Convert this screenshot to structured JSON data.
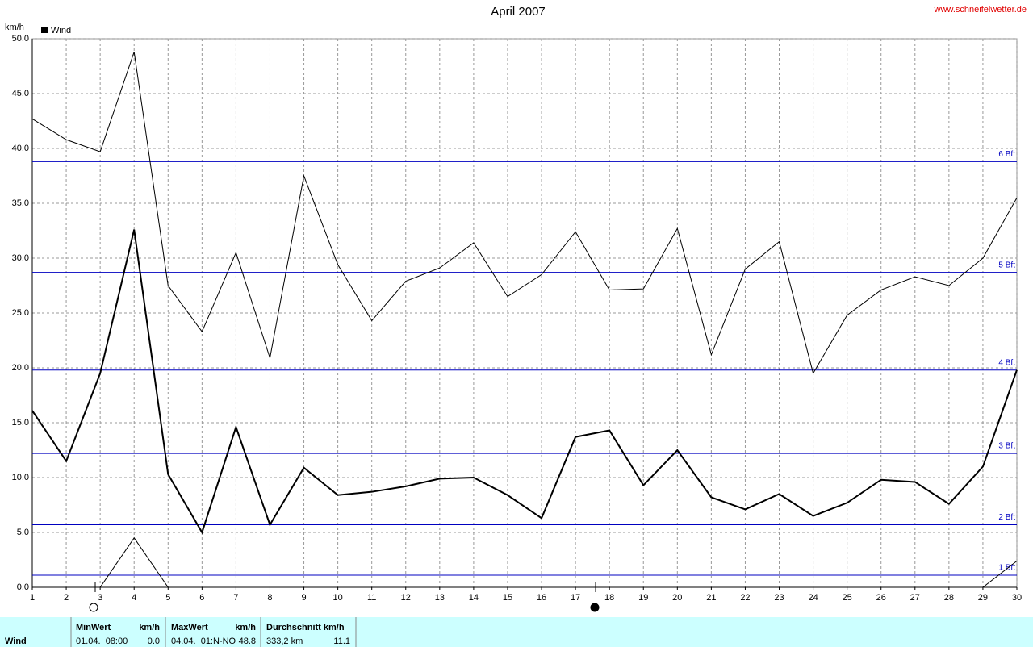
{
  "chart_data": {
    "type": "line",
    "title": "April 2007",
    "source": "www.schneifelwetter.de",
    "y_unit": "km/h",
    "legend": "Wind",
    "x": [
      1,
      2,
      3,
      4,
      5,
      6,
      7,
      8,
      9,
      10,
      11,
      12,
      13,
      14,
      15,
      16,
      17,
      18,
      19,
      20,
      21,
      22,
      23,
      24,
      25,
      26,
      27,
      28,
      29,
      30
    ],
    "series": [
      {
        "color": "#000000",
        "line_width": 1,
        "values": [
          42.7,
          40.8,
          39.7,
          48.8,
          27.5,
          23.3,
          30.5,
          20.9,
          37.5,
          29.4,
          24.3,
          27.9,
          29.1,
          31.4,
          26.5,
          28.5,
          32.4,
          27.1,
          27.2,
          32.7,
          21.2,
          29.0,
          31.5,
          19.5,
          24.8,
          27.1,
          28.3,
          27.5,
          30.0,
          35.5
        ]
      },
      {
        "color": "#000000",
        "line_width": 2,
        "values": [
          16.1,
          11.5,
          19.5,
          32.6,
          10.3,
          5.0,
          14.6,
          5.7,
          10.9,
          8.4,
          8.7,
          9.2,
          9.9,
          10.0,
          8.4,
          6.3,
          13.7,
          14.3,
          9.3,
          12.5,
          8.2,
          7.1,
          8.5,
          6.5,
          7.7,
          9.8,
          9.6,
          7.6,
          11.0,
          19.8
        ]
      },
      {
        "color": "#000000",
        "line_width": 1,
        "values": [
          0,
          0,
          0,
          4.5,
          0,
          0,
          0,
          0,
          0,
          0,
          0,
          0,
          0,
          0,
          0,
          0,
          0,
          0,
          0,
          0,
          0,
          0,
          0,
          0,
          0,
          0,
          0,
          0,
          0,
          2.4
        ]
      }
    ],
    "reference_lines": [
      {
        "value": 1.1,
        "label": "1 Bft",
        "color": "#0000c0"
      },
      {
        "value": 5.7,
        "label": "2 Bft",
        "color": "#0000c0"
      },
      {
        "value": 12.2,
        "label": "3 Bft",
        "color": "#0000c0"
      },
      {
        "value": 19.8,
        "label": "4 Bft",
        "color": "#0000c0"
      },
      {
        "value": 28.7,
        "label": "5 Bft",
        "color": "#0000c0"
      },
      {
        "value": 38.8,
        "label": "6 Bft",
        "color": "#0000c0"
      }
    ],
    "xlim": [
      1,
      30
    ],
    "xticks": [
      1,
      2,
      3,
      4,
      5,
      6,
      7,
      8,
      9,
      10,
      11,
      12,
      13,
      14,
      15,
      16,
      17,
      18,
      19,
      20,
      21,
      22,
      23,
      24,
      25,
      26,
      27,
      28,
      29,
      30
    ],
    "ylim": [
      0,
      50
    ],
    "yticks": [
      {
        "value": 0,
        "label": "0.0"
      },
      {
        "value": 5,
        "label": "5.0"
      },
      {
        "value": 10,
        "label": "10.0"
      },
      {
        "value": 15,
        "label": "15.0"
      },
      {
        "value": 20,
        "label": "20.0"
      },
      {
        "value": 25,
        "label": "25.0"
      },
      {
        "value": 30,
        "label": "30.0"
      },
      {
        "value": 35,
        "label": "35.0"
      },
      {
        "value": 40,
        "label": "40.0"
      },
      {
        "value": 45,
        "label": "45.0"
      },
      {
        "value": 50,
        "label": "50.0"
      }
    ],
    "grid": true
  },
  "summary_table": {
    "row_label": "Wind",
    "min": {
      "header": "MinWert",
      "unit": "km/h",
      "when": "01.04.  08:00",
      "value": "0.0"
    },
    "max": {
      "header": "MaxWert",
      "unit": "km/h",
      "when": "04.04.  01:N-NO",
      "value": "48.8"
    },
    "avg": {
      "header": "Durchschnitt km/h",
      "distance": "333,2 km",
      "value": "11.1"
    }
  }
}
